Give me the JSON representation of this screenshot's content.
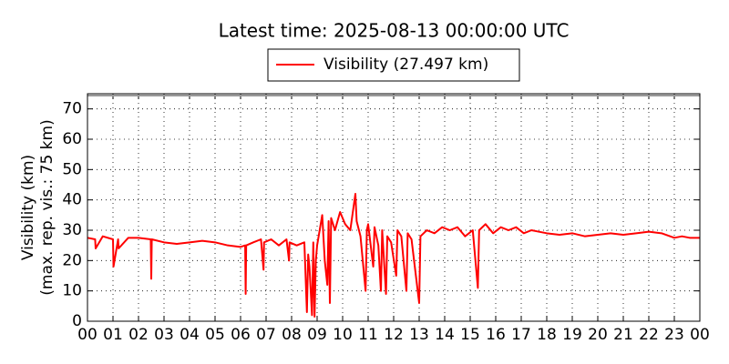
{
  "chart_data": {
    "type": "line",
    "title": "Latest time: 2025-08-13 00:00:00 UTC",
    "ylabel": [
      "Visibility (km)",
      "(max. rep. vis.: 75 km)"
    ],
    "x": [
      0,
      0.3,
      0.32,
      0.6,
      1.0,
      1.02,
      1.2,
      1.22,
      1.6,
      2.0,
      2.48,
      2.5,
      2.52,
      3,
      3.5,
      4,
      4.5,
      5,
      5.5,
      6,
      6.18,
      6.2,
      6.22,
      6.5,
      6.8,
      6.9,
      6.92,
      7.2,
      7.5,
      7.8,
      7.9,
      7.92,
      8.2,
      8.5,
      8.6,
      8.65,
      8.7,
      8.8,
      8.85,
      8.9,
      8.95,
      9.0,
      9.1,
      9.2,
      9.3,
      9.4,
      9.45,
      9.5,
      9.55,
      9.7,
      9.9,
      10.1,
      10.3,
      10.5,
      10.55,
      10.7,
      10.9,
      10.95,
      11.0,
      11.2,
      11.25,
      11.4,
      11.5,
      11.55,
      11.7,
      11.75,
      11.9,
      12.1,
      12.15,
      12.3,
      12.5,
      12.55,
      12.7,
      13.0,
      13.05,
      13.3,
      13.6,
      13.9,
      14.2,
      14.5,
      14.8,
      15.1,
      15.3,
      15.35,
      15.6,
      15.9,
      16.2,
      16.5,
      16.8,
      17.1,
      17.4,
      17.7,
      18.0,
      18.5,
      19,
      19.5,
      20,
      20.5,
      21,
      21.5,
      22,
      22.5,
      23,
      23.3,
      23.6,
      24
    ],
    "series": [
      {
        "name": "Visibility (27.497 km)",
        "color": "#ff0000",
        "values": [
          27.5,
          27,
          24,
          28,
          27,
          18,
          27,
          24,
          27.5,
          27.5,
          27,
          14,
          27,
          26,
          25.5,
          26,
          26.5,
          26,
          25,
          24.5,
          25,
          9,
          25,
          26,
          27,
          17,
          26,
          27,
          25,
          27,
          20,
          26,
          25,
          26,
          3,
          22,
          18,
          2,
          26,
          1.5,
          20,
          25,
          30,
          35,
          20,
          12,
          33,
          6,
          34,
          30,
          36,
          32,
          30,
          42,
          33,
          28,
          10,
          30,
          32,
          18,
          31,
          25,
          10,
          30,
          9,
          28,
          26,
          15,
          30,
          28,
          10,
          29,
          27,
          6,
          28,
          30,
          29,
          31,
          30,
          31,
          28,
          30,
          11,
          30,
          32,
          29,
          31,
          30,
          31,
          29,
          30,
          29.5,
          29,
          28.5,
          29,
          28,
          28.5,
          29,
          28.5,
          29,
          29.5,
          29,
          27.5,
          28,
          27.5,
          27.5
        ]
      }
    ],
    "xlim": [
      0,
      24
    ],
    "xticks": [
      {
        "value": 0,
        "label": "00"
      },
      {
        "value": 1,
        "label": "01"
      },
      {
        "value": 2,
        "label": "02"
      },
      {
        "value": 3,
        "label": "03"
      },
      {
        "value": 4,
        "label": "04"
      },
      {
        "value": 5,
        "label": "05"
      },
      {
        "value": 6,
        "label": "06"
      },
      {
        "value": 7,
        "label": "07"
      },
      {
        "value": 8,
        "label": "08"
      },
      {
        "value": 9,
        "label": "09"
      },
      {
        "value": 10,
        "label": "10"
      },
      {
        "value": 11,
        "label": "11"
      },
      {
        "value": 12,
        "label": "12"
      },
      {
        "value": 13,
        "label": "13"
      },
      {
        "value": 14,
        "label": "14"
      },
      {
        "value": 15,
        "label": "15"
      },
      {
        "value": 16,
        "label": "16"
      },
      {
        "value": 17,
        "label": "17"
      },
      {
        "value": 18,
        "label": "18"
      },
      {
        "value": 19,
        "label": "19"
      },
      {
        "value": 20,
        "label": "20"
      },
      {
        "value": 21,
        "label": "21"
      },
      {
        "value": 22,
        "label": "22"
      },
      {
        "value": 23,
        "label": "23"
      },
      {
        "value": 24,
        "label": "00"
      }
    ],
    "ylim": [
      0,
      75
    ],
    "yticks": [
      0,
      10,
      20,
      30,
      40,
      50,
      60,
      70
    ],
    "grid": true
  }
}
